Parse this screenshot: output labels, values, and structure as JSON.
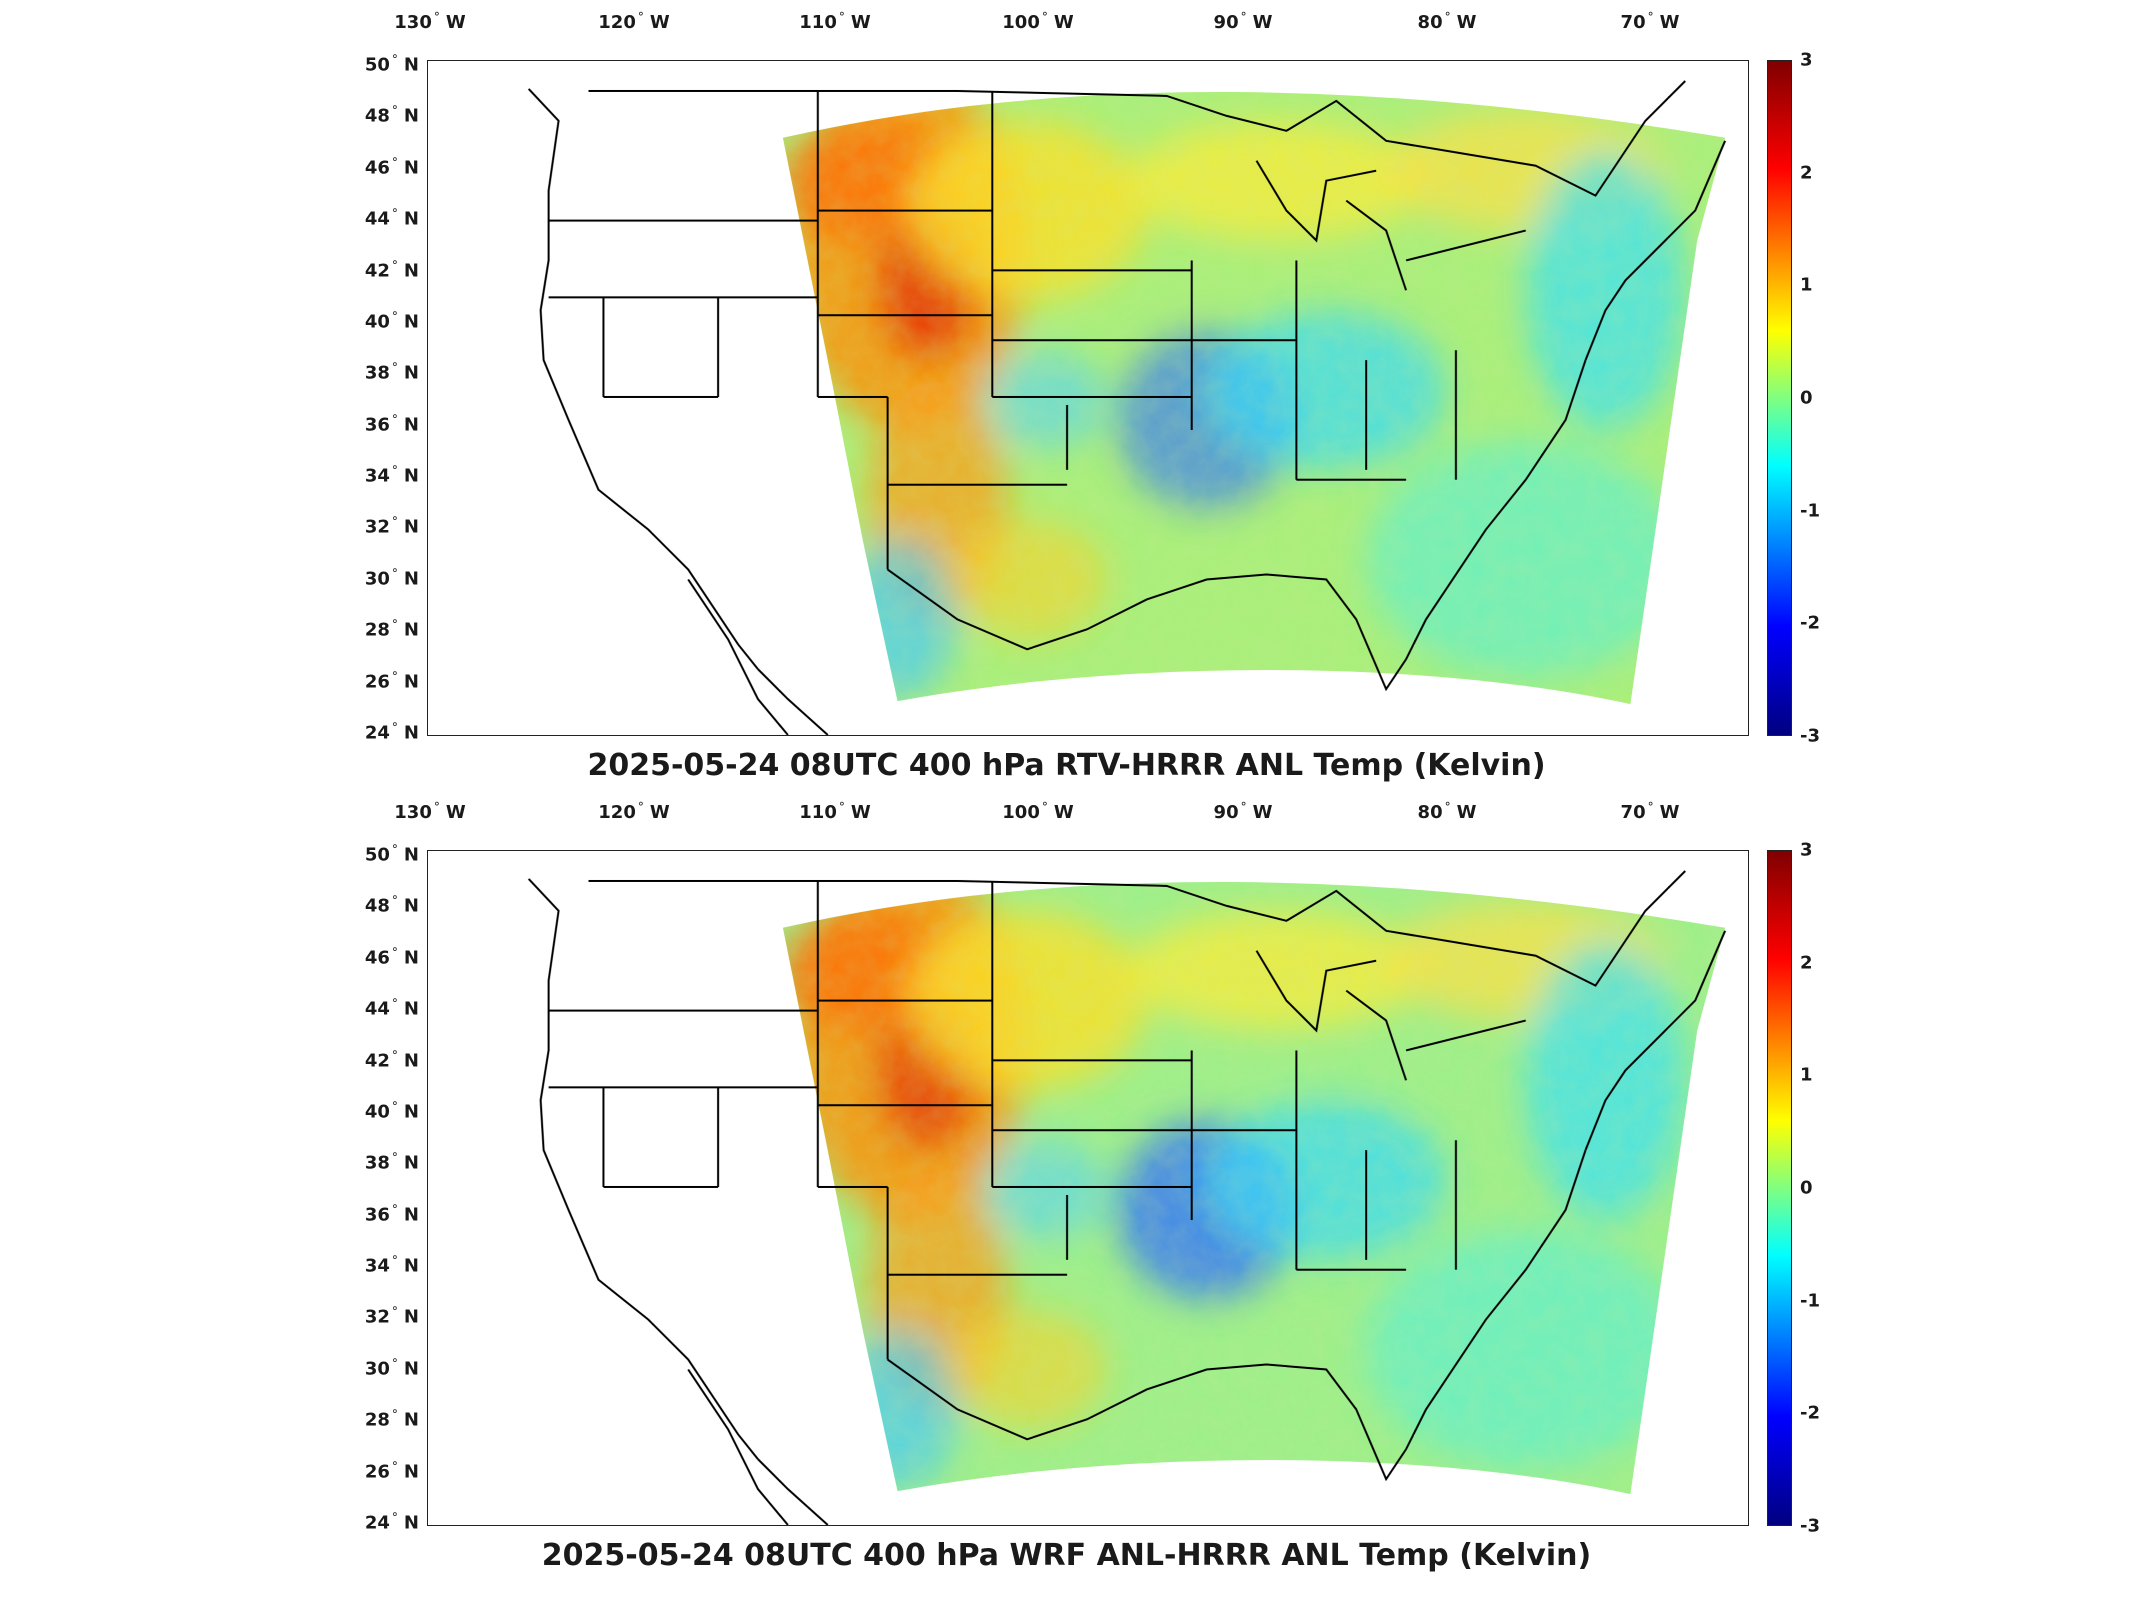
{
  "panels": [
    {
      "title": "2025-05-24 08UTC 400 hPa RTV-HRRR ANL Temp (Kelvin)",
      "variant": "rtv"
    },
    {
      "title": "2025-05-24 08UTC 400 hPa WRF ANL-HRRR ANL Temp (Kelvin)",
      "variant": "wrf"
    }
  ],
  "lon_labels": [
    {
      "deg": "130",
      "hemi": "W"
    },
    {
      "deg": "120",
      "hemi": "W"
    },
    {
      "deg": "110",
      "hemi": "W"
    },
    {
      "deg": "100",
      "hemi": "W"
    },
    {
      "deg": "90",
      "hemi": "W"
    },
    {
      "deg": "80",
      "hemi": "W"
    },
    {
      "deg": "70",
      "hemi": "W"
    }
  ],
  "lat_labels": [
    {
      "deg": "50",
      "hemi": "N"
    },
    {
      "deg": "48",
      "hemi": "N"
    },
    {
      "deg": "46",
      "hemi": "N"
    },
    {
      "deg": "44",
      "hemi": "N"
    },
    {
      "deg": "42",
      "hemi": "N"
    },
    {
      "deg": "40",
      "hemi": "N"
    },
    {
      "deg": "38",
      "hemi": "N"
    },
    {
      "deg": "36",
      "hemi": "N"
    },
    {
      "deg": "34",
      "hemi": "N"
    },
    {
      "deg": "32",
      "hemi": "N"
    },
    {
      "deg": "30",
      "hemi": "N"
    },
    {
      "deg": "28",
      "hemi": "N"
    },
    {
      "deg": "26",
      "hemi": "N"
    },
    {
      "deg": "24",
      "hemi": "N"
    }
  ],
  "colorbar": {
    "ticks": [
      "3",
      "2",
      "1",
      "0",
      "-1",
      "-2",
      "-3"
    ],
    "range": [
      -3,
      3
    ],
    "colormap": "jet",
    "colors": [
      "#800000",
      "#ff0000",
      "#ff8000",
      "#ffff00",
      "#80ff80",
      "#00ffff",
      "#0080ff",
      "#0000ff",
      "#000080"
    ]
  },
  "degree_symbol": "°"
}
